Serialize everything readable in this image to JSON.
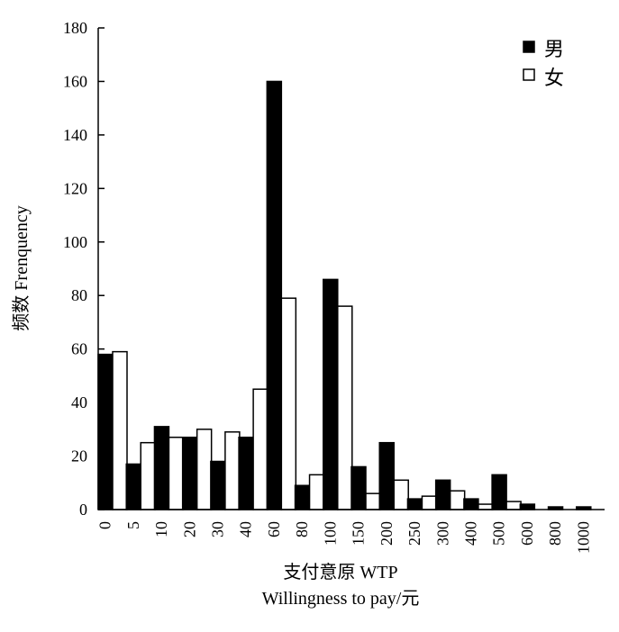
{
  "chart_data": {
    "type": "bar",
    "title": "",
    "xlabel": "支付意原 WTP",
    "xlabel_line2": "Willingness to pay/元",
    "ylabel": "频数 Frenquency",
    "ylim": [
      0,
      180
    ],
    "yticks": [
      0,
      20,
      40,
      60,
      80,
      100,
      120,
      140,
      160,
      180
    ],
    "grid": false,
    "legend_position": "top-right",
    "categories": [
      "0",
      "5",
      "10",
      "20",
      "30",
      "40",
      "60",
      "80",
      "100",
      "150",
      "200",
      "250",
      "300",
      "400",
      "500",
      "600",
      "800",
      "1000"
    ],
    "series": [
      {
        "name": "男",
        "color": "#000000",
        "fill": "solid",
        "values": [
          58,
          17,
          31,
          27,
          18,
          27,
          160,
          9,
          86,
          16,
          25,
          4,
          11,
          4,
          13,
          2,
          1,
          1
        ]
      },
      {
        "name": "女",
        "color": "#ffffff",
        "fill": "hollow",
        "values": [
          59,
          25,
          27,
          30,
          29,
          45,
          79,
          13,
          76,
          6,
          11,
          5,
          7,
          2,
          3,
          0,
          0,
          0
        ]
      }
    ]
  }
}
